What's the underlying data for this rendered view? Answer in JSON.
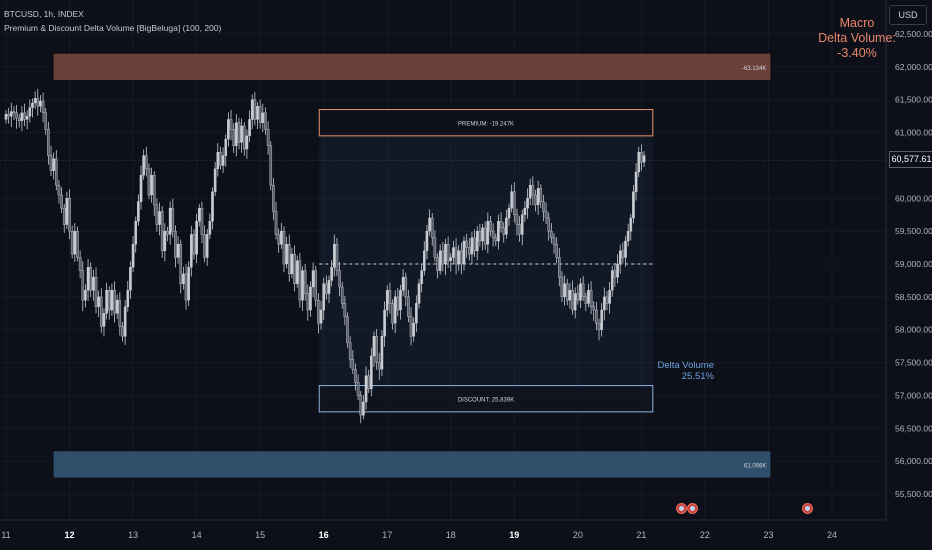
{
  "header": {
    "symbol_line": "BTCUSD, 1h, INDEX",
    "indicator_line": "Premium & Discount Delta Volume [BigBeluga] (100, 200)"
  },
  "currency_button": "USD",
  "macro": {
    "line1": "Macro",
    "line2": "Delta Volume:",
    "value": "-3.40%"
  },
  "delta_volume": {
    "label": "Delta Volume",
    "value": "25.51%"
  },
  "current_price_label": "60,577.61",
  "colors": {
    "background": "#0d0f19",
    "candle": "#c8cbd2",
    "premium_zone": "#6b3f3a",
    "discount_zone": "#2f4e6a",
    "premium_border": "#e8976c",
    "discount_border": "#8db4e0",
    "macro_text": "#e8876c",
    "delta_text": "#6fa3e0"
  },
  "chart_data": {
    "type": "candlestick",
    "y_axis": {
      "range": [
        55300,
        62800
      ],
      "ticks": [
        55500,
        56000,
        56500,
        57000,
        57500,
        58000,
        58500,
        59000,
        59500,
        60000,
        61000,
        61500,
        62000,
        62500
      ],
      "tick_labels": [
        "55,500.00",
        "56,000.00",
        "56,500.00",
        "57,000.00",
        "57,500.00",
        "58,000.00",
        "58,500.00",
        "59,000.00",
        "59,500.00",
        "60,000.00",
        "61,000.00",
        "61,500.00",
        "62,000.00",
        "62,500.00"
      ]
    },
    "x_axis": {
      "day_range": [
        11,
        24.2
      ],
      "ticks": [
        11,
        12,
        13,
        14,
        15,
        16,
        17,
        18,
        19,
        20,
        21,
        22,
        23,
        24
      ],
      "tick_labels": [
        "11",
        "12",
        "13",
        "14",
        "15",
        "16",
        "17",
        "18",
        "19",
        "20",
        "21",
        "22",
        "23",
        "24"
      ]
    },
    "current_price": 60577.61,
    "zones": {
      "premium_top": {
        "day_start": 11.75,
        "day_end": 23.03,
        "low": 61800,
        "high": 62200,
        "label": "-63.134K"
      },
      "discount_bottom": {
        "day_start": 11.75,
        "day_end": 23.03,
        "low": 55750,
        "high": 56150,
        "label": "61.098K"
      },
      "premium_box": {
        "day_start": 15.93,
        "day_end": 21.18,
        "low": 60950,
        "high": 61350,
        "label": "PREMIUM: -19.247K"
      },
      "discount_box": {
        "day_start": 15.93,
        "day_end": 21.18,
        "low": 56750,
        "high": 57150,
        "label": "DISCOUNT: 25.839K"
      },
      "range_box": {
        "day_start": 15.93,
        "day_end": 21.18,
        "low": 56750,
        "high": 61000
      },
      "equilibrium": 59000
    },
    "candles_series": {
      "day_start": 11.0,
      "hours_per_step": 1,
      "closes": [
        61280,
        61250,
        61320,
        61300,
        61220,
        61180,
        61300,
        61200,
        61250,
        61380,
        61450,
        61520,
        61400,
        61480,
        61300,
        61050,
        60650,
        60420,
        60600,
        60200,
        60050,
        59850,
        59600,
        60000,
        59500,
        59150,
        59500,
        59100,
        58900,
        58450,
        58600,
        58950,
        58600,
        58800,
        58350,
        58500,
        58050,
        58250,
        58600,
        58300,
        58600,
        58250,
        58450,
        58050,
        57900,
        58350,
        58600,
        58950,
        59300,
        59650,
        59950,
        60350,
        60650,
        60450,
        60050,
        60350,
        59900,
        59600,
        59800,
        59200,
        59500,
        59450,
        59850,
        59500,
        59100,
        59300,
        58700,
        58850,
        58450,
        58950,
        59450,
        59150,
        59650,
        59850,
        59450,
        59100,
        59450,
        59650,
        60100,
        60450,
        60700,
        60500,
        60650,
        60900,
        61200,
        61050,
        60800,
        61150,
        60850,
        61100,
        60750,
        60950,
        61200,
        61500,
        61200,
        61400,
        61150,
        61300,
        61050,
        60800,
        60200,
        59800,
        59450,
        59300,
        59500,
        59000,
        59300,
        58850,
        59150,
        58700,
        59050,
        58450,
        58900,
        58550,
        58300,
        58650,
        58900,
        58450,
        58100,
        58300,
        58700,
        58550,
        58750,
        58950,
        59300,
        58900,
        58650,
        58400,
        58200,
        57800,
        57550,
        57400,
        57200,
        57000,
        56700,
        56900,
        57300,
        57100,
        57600,
        57900,
        57500,
        57400,
        57900,
        58300,
        58600,
        58400,
        58100,
        58500,
        58300,
        58600,
        58800,
        58500,
        58200,
        57900,
        58100,
        58400,
        58700,
        58900,
        59200,
        59500,
        59700,
        59400,
        59100,
        58900,
        59200,
        59000,
        59300,
        59050,
        59100,
        59250,
        59000,
        59200,
        59000,
        59350,
        59250,
        59150,
        59400,
        59200,
        59500,
        59350,
        59550,
        59300,
        59650,
        59500,
        59400,
        59350,
        59650,
        59550,
        59450,
        59700,
        59850,
        60100,
        59750,
        59600,
        59450,
        59750,
        59850,
        60000,
        60200,
        60050,
        59900,
        60150,
        59950,
        59800,
        59700,
        59500,
        59400,
        59300,
        59100,
        58800,
        58500,
        58700,
        58450,
        58600,
        58300,
        58550,
        58450,
        58700,
        58500,
        58400,
        58600,
        58350,
        58300,
        58100,
        58000,
        58300,
        58500,
        58400,
        58600,
        58900,
        58800,
        59000,
        59200,
        59100,
        59350,
        59500,
        59700,
        60100,
        60400,
        60700,
        60550,
        60650
      ]
    }
  }
}
